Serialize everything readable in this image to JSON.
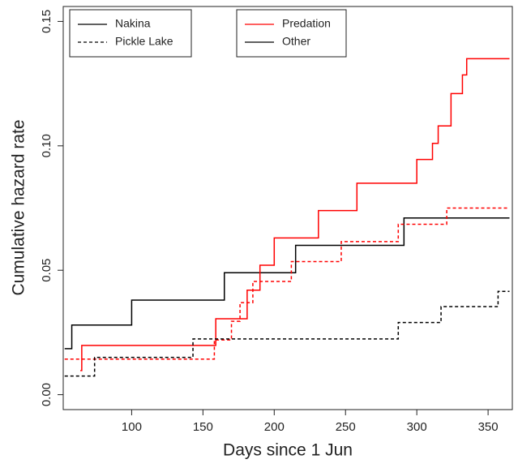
{
  "chart_data": {
    "type": "step",
    "x_label": "Days since 1 Jun",
    "y_label": "Cumulative hazard rate",
    "xlim": [
      52,
      367
    ],
    "ylim": [
      -0.006,
      0.156
    ],
    "xticks": [
      100,
      150,
      200,
      250,
      300,
      350
    ],
    "yticks": [
      {
        "value": 0,
        "label": "0.00"
      },
      {
        "value": 0.05,
        "label": "0.05"
      },
      {
        "value": 0.1,
        "label": "0.10"
      },
      {
        "value": 0.15,
        "label": "0.15"
      }
    ],
    "legend_styles": [
      {
        "name": "Nakina",
        "dashed": false
      },
      {
        "name": "Pickle Lake",
        "dashed": true
      }
    ],
    "legend_colors": [
      {
        "name": "Predation",
        "color": "#ff0000"
      },
      {
        "name": "Other",
        "color": "#000000"
      }
    ],
    "series": [
      {
        "color": "#000000",
        "dashed": false,
        "x": [
          53,
          58,
          100,
          165,
          215,
          291,
          365
        ],
        "values": [
          0.0185,
          0.028,
          0.038,
          0.049,
          0.06,
          0.071,
          0.071
        ]
      },
      {
        "color": "#ff0000",
        "dashed": false,
        "x": [
          64,
          65,
          159,
          181,
          190,
          200,
          231,
          258,
          300,
          311,
          315,
          324,
          332,
          335,
          365
        ],
        "values": [
          0.0097,
          0.0198,
          0.0305,
          0.042,
          0.052,
          0.063,
          0.074,
          0.085,
          0.0945,
          0.101,
          0.108,
          0.121,
          0.1285,
          0.135,
          0.135
        ]
      },
      {
        "color": "#ff0000",
        "dashed": true,
        "x": [
          53,
          158,
          170,
          176,
          185,
          212,
          247,
          287,
          321,
          365
        ],
        "values": [
          0.0143,
          0.022,
          0.0295,
          0.037,
          0.0455,
          0.0535,
          0.0615,
          0.0685,
          0.075,
          0.075
        ]
      },
      {
        "color": "#000000",
        "dashed": true,
        "x": [
          53,
          74,
          143,
          287,
          317,
          357,
          365
        ],
        "values": [
          0.0075,
          0.015,
          0.0224,
          0.029,
          0.0354,
          0.0415,
          0.0415
        ]
      }
    ]
  }
}
